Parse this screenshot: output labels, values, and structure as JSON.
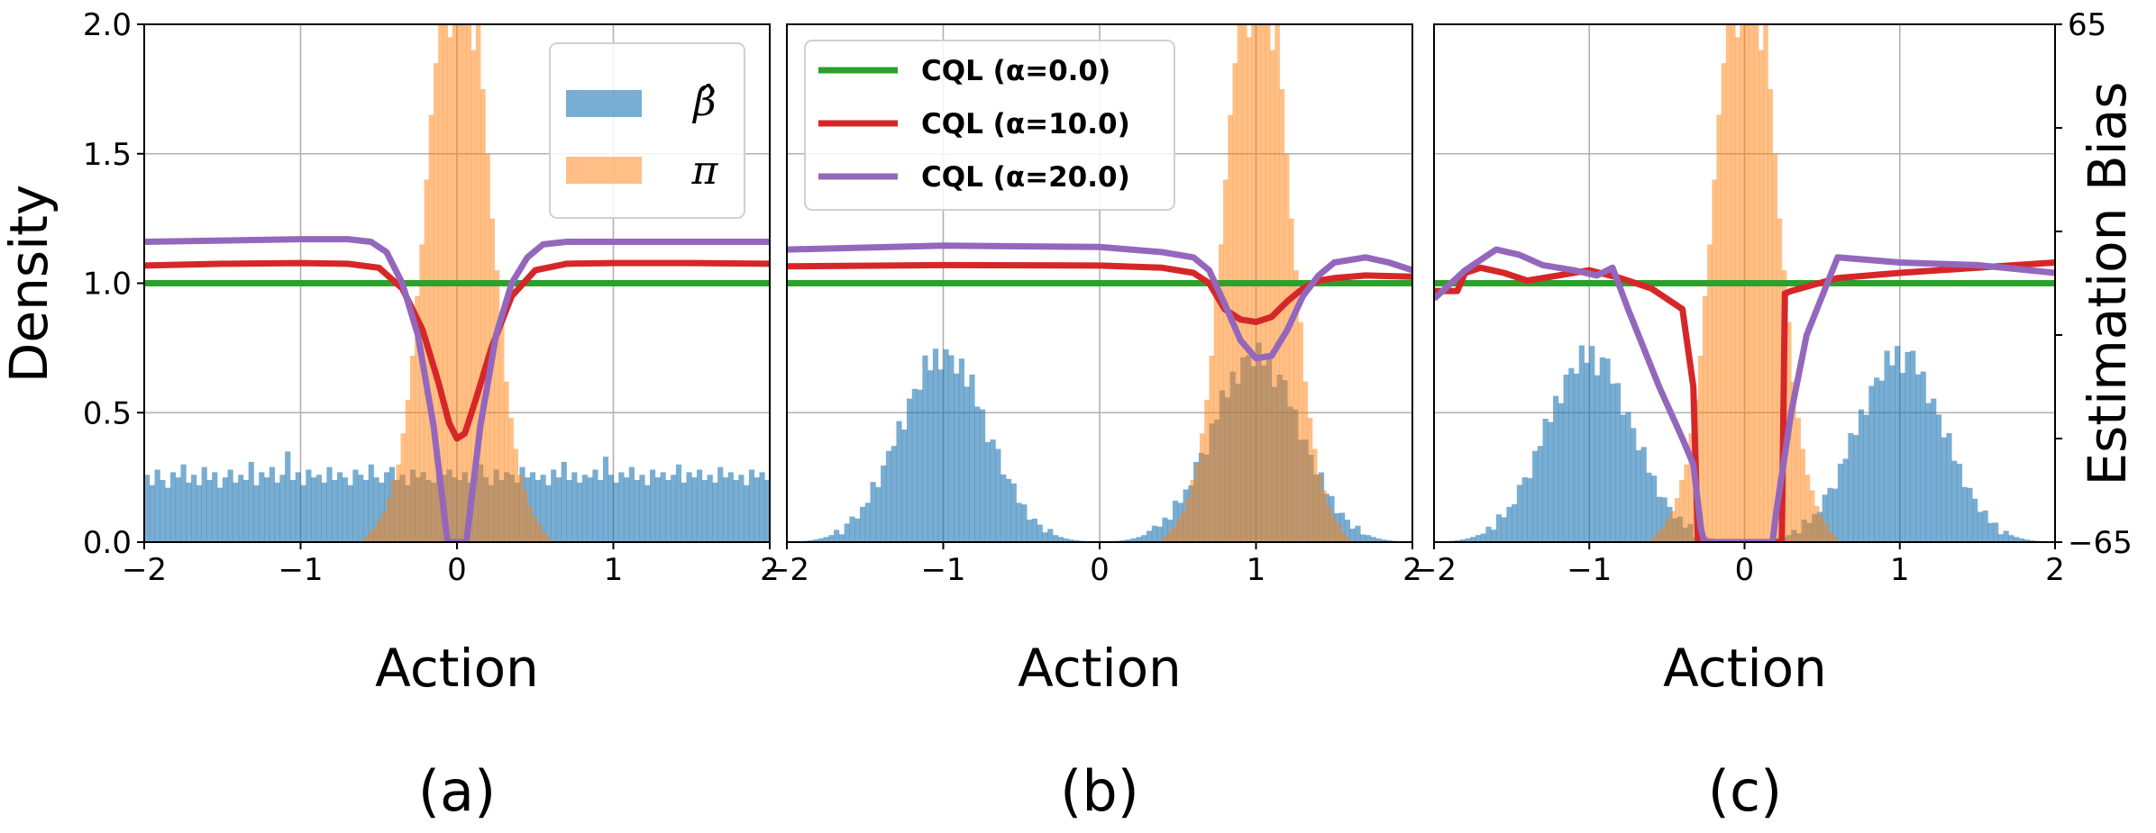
{
  "chart_data": [
    {
      "id": "a",
      "type": "bar",
      "subplot_label": "(a)",
      "xlabel": "Action",
      "ylabel": "Density",
      "xlim": [
        -2,
        2
      ],
      "ylim": [
        0,
        2.0
      ],
      "xticks": [
        -2,
        -1,
        0,
        1,
        2
      ],
      "xtick_labels": [
        "−2",
        "−1",
        "0",
        "1",
        "2"
      ],
      "yticks": [
        0.0,
        0.5,
        1.0,
        1.5,
        2.0
      ],
      "ytick_labels": [
        "0.0",
        "0.5",
        "1.0",
        "1.5",
        "2.0"
      ],
      "grid": true,
      "legend": {
        "location": "top-right",
        "entries": [
          {
            "label": "β̂",
            "color": "#1f77b4"
          },
          {
            "label": "π",
            "color": "#ff7f0e"
          }
        ]
      },
      "histograms": [
        {
          "name": "beta_hat",
          "color": "#1f77b4",
          "bins": 120,
          "values": [
            0.26,
            0.22,
            0.28,
            0.24,
            0.21,
            0.27,
            0.25,
            0.3,
            0.23,
            0.26,
            0.22,
            0.29,
            0.24,
            0.27,
            0.21,
            0.25,
            0.28,
            0.23,
            0.26,
            0.24,
            0.31,
            0.22,
            0.27,
            0.25,
            0.29,
            0.23,
            0.26,
            0.35,
            0.24,
            0.27,
            0.22,
            0.28,
            0.25,
            0.26,
            0.23,
            0.29,
            0.24,
            0.27,
            0.25,
            0.22,
            0.28,
            0.26,
            0.24,
            0.3,
            0.25,
            0.23,
            0.27,
            0.29,
            0.24,
            0.26,
            0.22,
            0.28,
            0.25,
            0.27,
            0.24,
            0.23,
            0.29,
            0.26,
            0.28,
            0.25,
            0.24,
            0.27,
            0.23,
            0.26,
            0.3,
            0.25,
            0.22,
            0.28,
            0.24,
            0.27,
            0.26,
            0.23,
            0.29,
            0.25,
            0.27,
            0.24,
            0.26,
            0.22,
            0.28,
            0.25,
            0.31,
            0.24,
            0.27,
            0.23,
            0.26,
            0.25,
            0.28,
            0.24,
            0.33,
            0.26,
            0.23,
            0.27,
            0.25,
            0.29,
            0.24,
            0.26,
            0.22,
            0.28,
            0.25,
            0.27,
            0.24,
            0.26,
            0.3,
            0.23,
            0.27,
            0.25,
            0.28,
            0.24,
            0.26,
            0.23,
            0.29,
            0.25,
            0.27,
            0.24,
            0.26,
            0.22,
            0.28,
            0.25,
            0.27,
            0.24
          ]
        },
        {
          "name": "pi",
          "color": "#ff7f0e",
          "bins": 40,
          "range": [
            -0.6,
            0.6
          ],
          "values": [
            0.02,
            0.04,
            0.06,
            0.09,
            0.12,
            0.17,
            0.24,
            0.3,
            0.42,
            0.55,
            0.72,
            0.95,
            1.15,
            1.4,
            1.65,
            1.85,
            2.3,
            2.5,
            1.95,
            2.2,
            2.6,
            2.05,
            2.4,
            1.9,
            2.1,
            1.75,
            1.5,
            1.25,
            1.05,
            0.85,
            0.62,
            0.48,
            0.36,
            0.26,
            0.2,
            0.14,
            0.1,
            0.07,
            0.04,
            0.02
          ]
        }
      ],
      "lines": [
        {
          "name": "CQL (α=0.0)",
          "color": "#2ca02c",
          "norm": true,
          "x": [
            -2,
            2
          ],
          "y": [
            1.0,
            1.0
          ]
        },
        {
          "name": "CQL (α=10.0)",
          "color": "#d62728",
          "norm": true,
          "x": [
            -2.0,
            -1.5,
            -1.0,
            -0.7,
            -0.5,
            -0.35,
            -0.22,
            -0.12,
            -0.05,
            0.0,
            0.05,
            0.12,
            0.22,
            0.35,
            0.5,
            0.7,
            1.0,
            1.5,
            2.0
          ],
          "y": [
            1.068,
            1.075,
            1.078,
            1.075,
            1.06,
            0.98,
            0.82,
            0.62,
            0.46,
            0.4,
            0.42,
            0.55,
            0.75,
            0.95,
            1.05,
            1.075,
            1.078,
            1.078,
            1.075
          ]
        },
        {
          "name": "CQL (α=20.0)",
          "color": "#9467bd",
          "norm": true,
          "x": [
            -2.0,
            -1.5,
            -1.0,
            -0.7,
            -0.55,
            -0.45,
            -0.35,
            -0.25,
            -0.15,
            -0.09,
            -0.06,
            0.06,
            0.09,
            0.15,
            0.25,
            0.35,
            0.45,
            0.55,
            0.7,
            1.0,
            1.5,
            2.0
          ],
          "y": [
            1.16,
            1.165,
            1.17,
            1.17,
            1.16,
            1.12,
            1.0,
            0.8,
            0.45,
            0.15,
            0.0,
            0.0,
            0.15,
            0.45,
            0.8,
            1.0,
            1.1,
            1.15,
            1.16,
            1.16,
            1.16,
            1.16
          ]
        }
      ]
    },
    {
      "id": "b",
      "type": "bar",
      "subplot_label": "(b)",
      "xlabel": "Action",
      "xlim": [
        -2,
        2
      ],
      "ylim": [
        0,
        2.0
      ],
      "xticks": [
        -2,
        -1,
        0,
        1,
        2
      ],
      "xtick_labels": [
        "−2",
        "−1",
        "0",
        "1",
        "2"
      ],
      "grid": true,
      "legend": {
        "location": "top-left",
        "entries": [
          {
            "label": "CQL (α=0.0)",
            "color": "#2ca02c"
          },
          {
            "label": "CQL (α=10.0)",
            "color": "#d62728"
          },
          {
            "label": "CQL (α=20.0)",
            "color": "#9467bd"
          }
        ]
      },
      "histograms": [
        {
          "name": "beta_hat",
          "color": "#1f77b4",
          "mixture": [
            [
              -1.0,
              0.28
            ],
            [
              1.0,
              0.28
            ]
          ],
          "peak": 0.72,
          "bins": 120,
          "noise": [
            0.02,
            -0.03,
            0.04,
            -0.01,
            0.03,
            -0.04,
            0.01,
            0.05,
            -0.02,
            0.03,
            -0.05,
            0.02,
            0.04,
            -0.03,
            0.01,
            -0.02,
            0.06,
            -0.04,
            0.02,
            0.03,
            -0.01,
            0.04,
            -0.05,
            0.02,
            0.01,
            -0.03,
            0.05,
            -0.02,
            0.03,
            -0.04,
            0.02,
            0.01,
            -0.03,
            0.04,
            -0.02,
            0.06,
            -0.01,
            0.03,
            -0.05,
            0.02,
            0.04,
            -0.03,
            0.01,
            0.05,
            -0.02,
            0.03,
            -0.04,
            0.02,
            0.01,
            -0.03,
            0.04,
            -0.02,
            0.03,
            -0.05,
            0.02,
            0.06,
            -0.01,
            0.03,
            -0.04,
            0.02,
            0.01,
            -0.03,
            0.05,
            -0.02,
            0.04,
            -0.03,
            0.01,
            0.03,
            -0.05,
            0.02,
            0.04,
            -0.01,
            0.03,
            -0.04,
            0.06,
            -0.02,
            0.01,
            -0.03,
            0.04,
            0.02,
            -0.05,
            0.03,
            -0.01,
            0.05,
            -0.02,
            0.03,
            -0.04,
            0.02,
            0.01,
            -0.03,
            0.04,
            -0.02,
            0.03,
            -0.05,
            0.02,
            0.04,
            -0.01,
            0.03,
            -0.04,
            0.02,
            0.01,
            -0.03,
            0.05,
            -0.02,
            0.03,
            -0.04,
            0.02,
            0.01,
            -0.03,
            0.04,
            -0.02,
            0.03,
            -0.05,
            0.02,
            0.04,
            -0.01,
            0.03,
            -0.04,
            0.02,
            0.01
          ]
        },
        {
          "name": "pi",
          "color": "#ff7f0e",
          "bins": 40,
          "range": [
            0.4,
            1.6
          ],
          "values": [
            0.02,
            0.04,
            0.06,
            0.09,
            0.12,
            0.17,
            0.24,
            0.3,
            0.42,
            0.55,
            0.72,
            0.95,
            1.15,
            1.4,
            1.65,
            1.85,
            2.3,
            2.5,
            1.95,
            2.2,
            2.6,
            2.05,
            2.4,
            1.9,
            2.1,
            1.75,
            1.5,
            1.25,
            1.05,
            0.85,
            0.62,
            0.48,
            0.36,
            0.26,
            0.2,
            0.14,
            0.1,
            0.07,
            0.04,
            0.02
          ]
        }
      ],
      "lines": [
        {
          "name": "CQL (α=0.0)",
          "color": "#2ca02c",
          "norm": true,
          "x": [
            -2,
            2
          ],
          "y": [
            1.0,
            1.0
          ]
        },
        {
          "name": "CQL (α=10.0)",
          "color": "#d62728",
          "norm": true,
          "x": [
            -2.0,
            -1.0,
            0.0,
            0.4,
            0.6,
            0.7,
            0.8,
            0.9,
            1.0,
            1.1,
            1.2,
            1.3,
            1.4,
            1.5,
            1.7,
            2.0
          ],
          "y": [
            1.065,
            1.07,
            1.068,
            1.06,
            1.04,
            1.0,
            0.9,
            0.86,
            0.85,
            0.87,
            0.93,
            0.98,
            1.01,
            1.02,
            1.03,
            1.025
          ]
        },
        {
          "name": "CQL (α=20.0)",
          "color": "#9467bd",
          "norm": true,
          "x": [
            -2.0,
            -1.0,
            0.0,
            0.4,
            0.6,
            0.7,
            0.8,
            0.9,
            1.0,
            1.1,
            1.2,
            1.3,
            1.4,
            1.5,
            1.7,
            1.85,
            2.0
          ],
          "y": [
            1.13,
            1.145,
            1.14,
            1.12,
            1.1,
            1.05,
            0.92,
            0.78,
            0.71,
            0.72,
            0.82,
            0.95,
            1.03,
            1.08,
            1.1,
            1.08,
            1.05
          ]
        }
      ]
    },
    {
      "id": "c",
      "type": "bar",
      "subplot_label": "(c)",
      "xlabel": "Action",
      "y2label": "Estimation Bias",
      "xlim": [
        -2,
        2
      ],
      "ylim": [
        0,
        2.0
      ],
      "y2lim": [
        -65,
        65
      ],
      "xticks": [
        -2,
        -1,
        0,
        1,
        2
      ],
      "xtick_labels": [
        "−2",
        "−1",
        "0",
        "1",
        "2"
      ],
      "y2ticks": [
        -65,
        65
      ],
      "y2tick_labels": [
        "−65",
        "65"
      ],
      "grid": true,
      "histograms": [
        {
          "name": "beta_hat",
          "color": "#1f77b4",
          "mixture": [
            [
              -1.0,
              0.28
            ],
            [
              1.0,
              0.28
            ]
          ],
          "peak": 0.72,
          "bins": 120,
          "noise": [
            0.03,
            -0.02,
            0.05,
            -0.04,
            0.01,
            0.03,
            -0.05,
            0.02,
            0.04,
            -0.01,
            0.03,
            -0.04,
            0.06,
            -0.02,
            0.01,
            -0.03,
            0.04,
            0.02,
            -0.05,
            0.03,
            -0.01,
            0.05,
            -0.02,
            0.03,
            -0.04,
            0.02,
            0.01,
            -0.03,
            0.04,
            -0.02,
            0.03,
            -0.05,
            0.02,
            0.04,
            -0.01,
            0.03,
            -0.04,
            0.02,
            0.01,
            -0.03,
            0.05,
            -0.02,
            0.03,
            -0.04,
            0.02,
            0.01,
            -0.03,
            0.04,
            -0.02,
            0.06,
            -0.05,
            0.02,
            0.04,
            -0.01,
            0.03,
            -0.04,
            0.02,
            0.01,
            -0.03,
            0.05,
            -0.02,
            0.04,
            -0.03,
            0.01,
            0.03,
            -0.05,
            0.02,
            0.04,
            -0.01,
            0.03,
            -0.04,
            0.06,
            -0.02,
            0.01,
            -0.03,
            0.04,
            0.02,
            -0.05,
            0.03,
            -0.01,
            0.05,
            -0.02,
            0.03,
            -0.04,
            0.02,
            0.01,
            -0.03,
            0.04,
            -0.02,
            0.03,
            -0.05,
            0.02,
            0.04,
            -0.01,
            0.03,
            -0.04,
            0.02,
            0.01,
            -0.03,
            0.05,
            -0.02,
            0.03,
            -0.04,
            0.02,
            0.01,
            -0.03,
            0.04,
            -0.02,
            0.03,
            -0.05,
            0.02,
            0.04,
            -0.01,
            0.03,
            -0.04,
            0.02,
            0.01,
            -0.02,
            0.03
          ]
        },
        {
          "name": "pi",
          "color": "#ff7f0e",
          "bins": 40,
          "range": [
            -0.6,
            0.6
          ],
          "values": [
            0.02,
            0.04,
            0.06,
            0.09,
            0.12,
            0.17,
            0.24,
            0.3,
            0.42,
            0.55,
            0.72,
            0.95,
            1.15,
            1.4,
            1.65,
            1.85,
            2.3,
            2.5,
            1.95,
            2.2,
            2.6,
            2.05,
            2.4,
            1.9,
            2.1,
            1.75,
            1.5,
            1.25,
            1.05,
            0.85,
            0.62,
            0.48,
            0.36,
            0.26,
            0.2,
            0.14,
            0.1,
            0.07,
            0.04,
            0.02
          ]
        }
      ],
      "lines": [
        {
          "name": "CQL (α=0.0)",
          "color": "#2ca02c",
          "norm": true,
          "x": [
            -2,
            2
          ],
          "y": [
            1.0,
            1.0
          ]
        },
        {
          "name": "CQL (α=10.0)",
          "color": "#d62728",
          "norm": true,
          "x": [
            -2.0,
            -1.85,
            -1.8,
            -1.7,
            -1.55,
            -1.4,
            -1.2,
            -1.0,
            -0.8,
            -0.6,
            -0.4,
            -0.33,
            -0.3,
            -0.28,
            0.22,
            0.24,
            0.26,
            0.3,
            0.6,
            1.0,
            1.5,
            2.0
          ],
          "y": [
            0.97,
            0.97,
            1.04,
            1.06,
            1.04,
            1.01,
            1.03,
            1.05,
            1.02,
            0.98,
            0.9,
            0.6,
            0.0,
            -0.05,
            -0.05,
            0.0,
            0.96,
            0.97,
            1.02,
            1.04,
            1.06,
            1.08
          ]
        },
        {
          "name": "CQL (α=20.0)",
          "color": "#9467bd",
          "norm": true,
          "x": [
            -2.0,
            -1.8,
            -1.6,
            -1.45,
            -1.3,
            -1.1,
            -0.95,
            -0.85,
            -0.75,
            -0.55,
            -0.4,
            -0.33,
            -0.28,
            -0.26,
            0.18,
            0.2,
            0.3,
            0.4,
            0.6,
            1.0,
            1.5,
            2.0
          ],
          "y": [
            0.94,
            1.05,
            1.13,
            1.11,
            1.07,
            1.05,
            1.03,
            1.06,
            0.9,
            0.6,
            0.4,
            0.3,
            0.05,
            -0.05,
            -0.05,
            0.1,
            0.5,
            0.8,
            1.1,
            1.08,
            1.07,
            1.04
          ]
        }
      ]
    }
  ]
}
